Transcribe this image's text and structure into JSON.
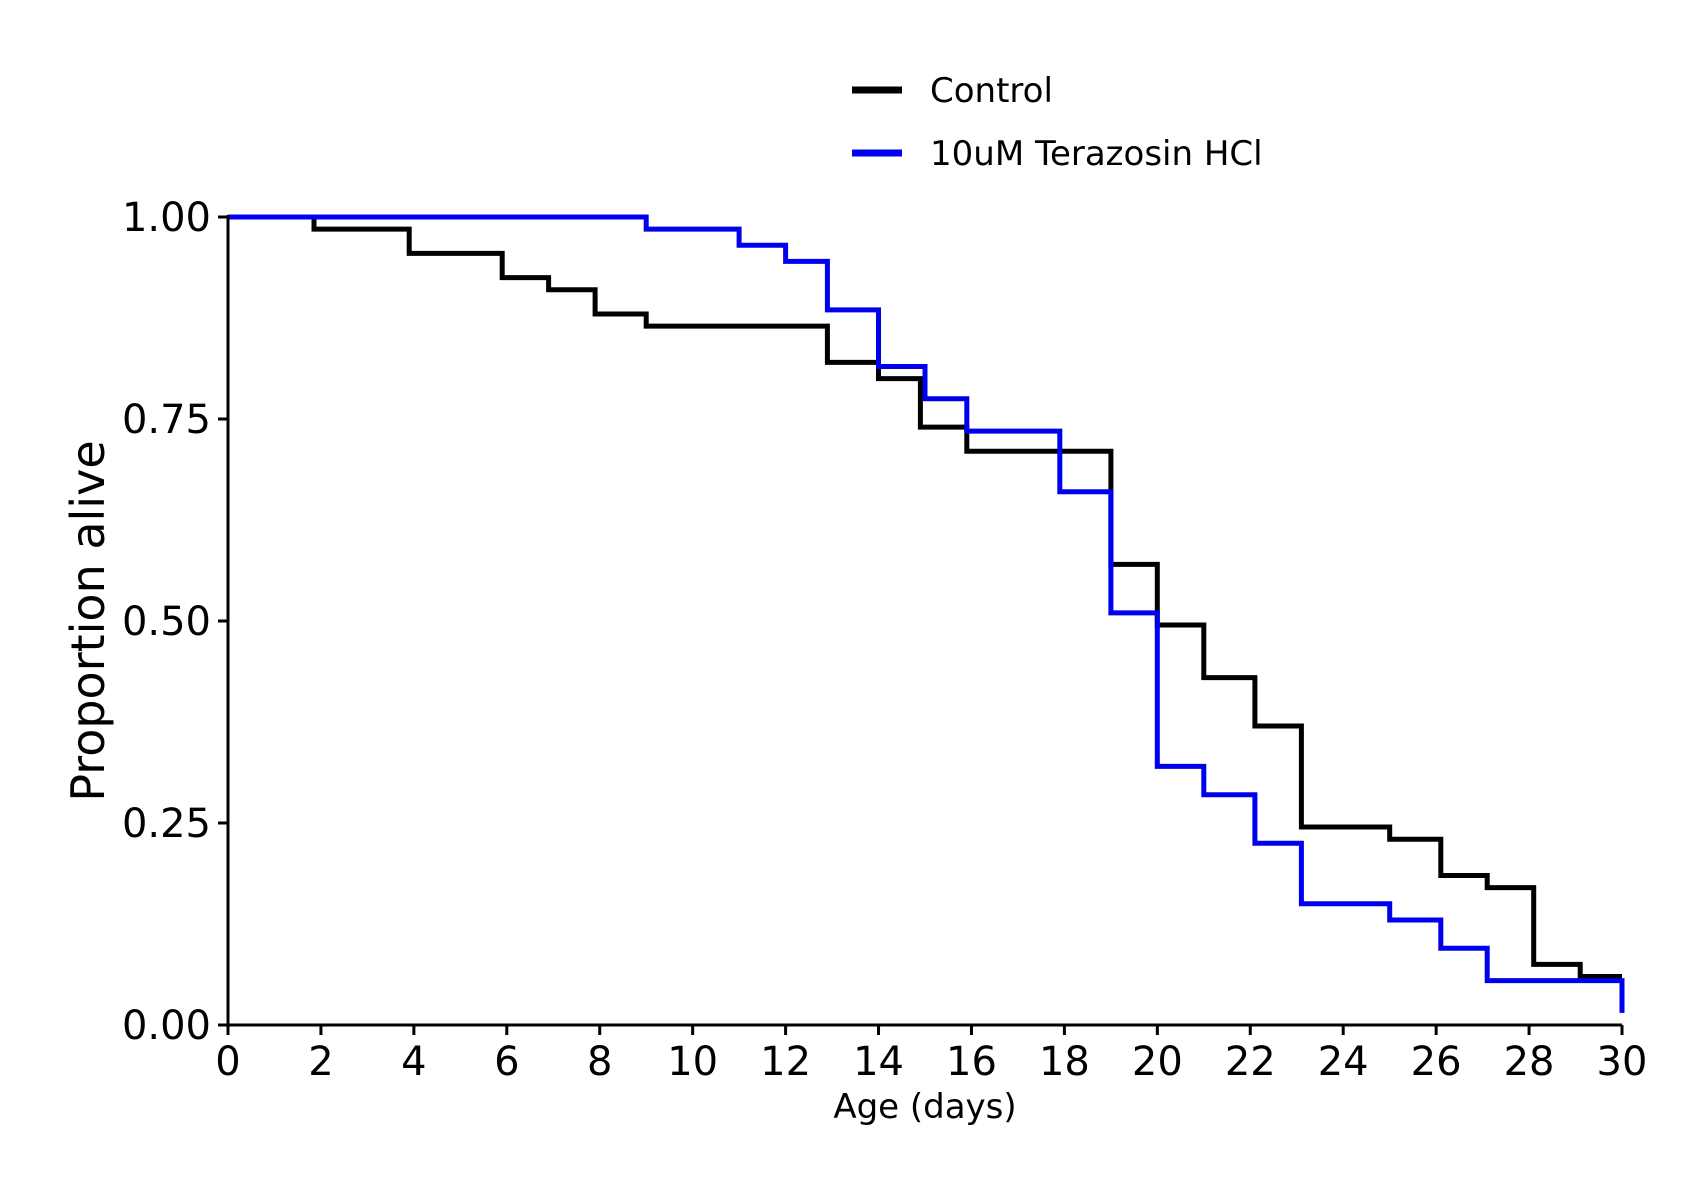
{
  "chart_data": {
    "type": "line",
    "step": true,
    "xlabel": "Age (days)",
    "ylabel": "Proportion alive",
    "xlim": [
      0,
      30
    ],
    "ylim": [
      0,
      1
    ],
    "x_ticks": [
      "0",
      "2",
      "4",
      "6",
      "8",
      "10",
      "12",
      "14",
      "16",
      "18",
      "20",
      "22",
      "24",
      "26",
      "28",
      "30"
    ],
    "y_ticks": [
      "0.00",
      "0.25",
      "0.50",
      "0.75",
      "1.00"
    ],
    "grid": false,
    "legend_position": "top-center",
    "series": [
      {
        "name": "Control",
        "color": "#000000",
        "x": [
          0,
          1.85,
          3.9,
          5.9,
          6.9,
          7.9,
          9.0,
          12.9,
          14.0,
          14.9,
          15.9,
          19.0,
          20.0,
          21.0,
          22.1,
          23.1,
          25.0,
          26.1,
          27.1,
          28.1,
          29.1,
          30.0
        ],
        "y": [
          1.0,
          0.985,
          0.955,
          0.925,
          0.91,
          0.88,
          0.865,
          0.82,
          0.8,
          0.74,
          0.71,
          0.57,
          0.495,
          0.43,
          0.37,
          0.245,
          0.23,
          0.185,
          0.17,
          0.075,
          0.06,
          0.06
        ]
      },
      {
        "name": "10uM Terazosin HCl",
        "color": "#0000ee",
        "x": [
          0,
          9.0,
          11.0,
          12.0,
          12.9,
          14.0,
          15.0,
          15.9,
          17.9,
          19.0,
          20.0,
          21.0,
          22.1,
          23.1,
          25.0,
          26.1,
          27.1,
          30.0
        ],
        "y": [
          1.0,
          0.985,
          0.965,
          0.945,
          0.885,
          0.815,
          0.775,
          0.735,
          0.66,
          0.51,
          0.32,
          0.285,
          0.225,
          0.15,
          0.13,
          0.095,
          0.055,
          0.015
        ]
      }
    ]
  }
}
